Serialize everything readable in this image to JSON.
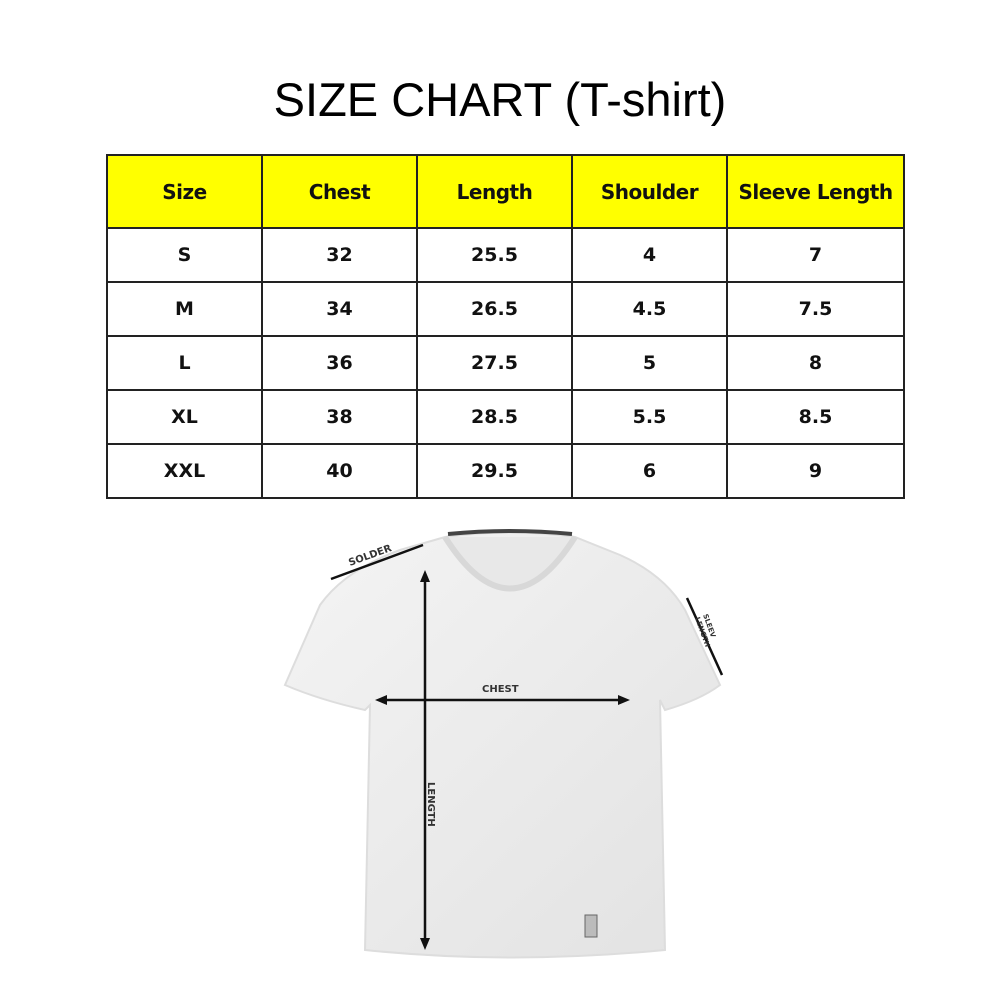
{
  "title": "SIZE CHART (T-shirt)",
  "colors": {
    "header_bg": "#ffff00",
    "border": "#222222"
  },
  "table": {
    "headers": [
      "Size",
      "Chest",
      "Length",
      "Shoulder",
      "Sleeve Length"
    ],
    "rows": [
      [
        "S",
        "32",
        "25.5",
        "4",
        "7"
      ],
      [
        "M",
        "34",
        "26.5",
        "4.5",
        "7.5"
      ],
      [
        "L",
        "36",
        "27.5",
        "5",
        "8"
      ],
      [
        "XL",
        "38",
        "28.5",
        "5.5",
        "8.5"
      ],
      [
        "XXL",
        "40",
        "29.5",
        "6",
        "9"
      ]
    ]
  },
  "chart_data": {
    "type": "table",
    "columns": [
      "Size",
      "Chest",
      "Length",
      "Shoulder",
      "Sleeve Length"
    ],
    "rows": [
      [
        "S",
        32,
        25.5,
        4,
        7
      ],
      [
        "M",
        34,
        26.5,
        4.5,
        7.5
      ],
      [
        "L",
        36,
        27.5,
        5,
        8
      ],
      [
        "XL",
        38,
        28.5,
        5.5,
        8.5
      ],
      [
        "XXL",
        40,
        29.5,
        6,
        9
      ]
    ]
  },
  "diagram": {
    "labels": {
      "shoulder": "SOLDER",
      "sleeve_1": "SLEEV",
      "sleeve_2": "LENGTH",
      "chest": "CHEST",
      "length": "LENGTH"
    }
  }
}
